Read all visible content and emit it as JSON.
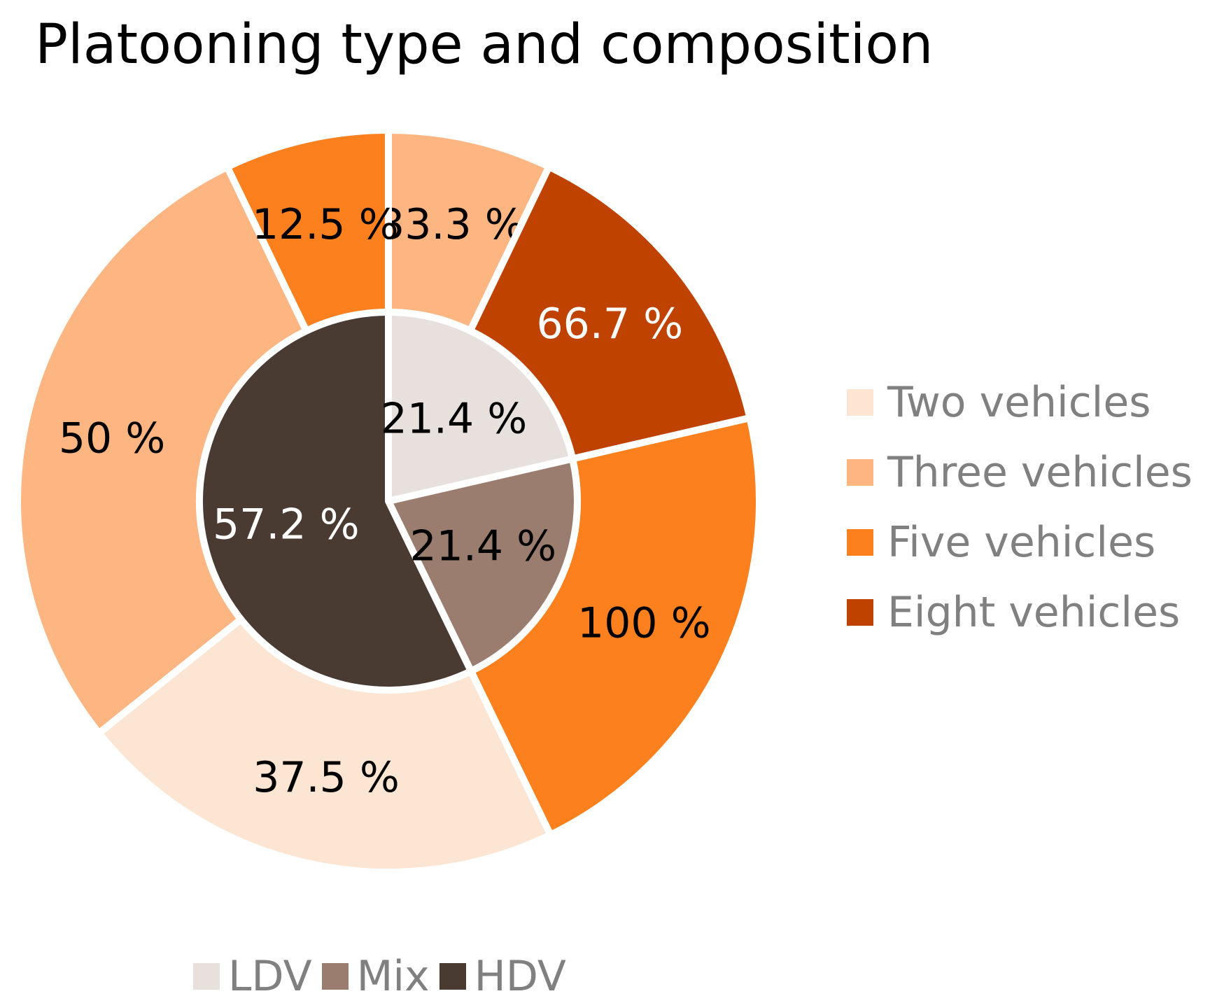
{
  "chart_data": {
    "type": "donut",
    "title": "Platooning type and composition",
    "inner_ring": {
      "categories": [
        "LDV",
        "Mix",
        "HDV"
      ],
      "values": [
        21.4,
        21.4,
        57.2
      ],
      "labels": [
        "21.4 %",
        "21.4 %",
        "57.2 %"
      ],
      "colors": [
        "#E7E0DD",
        "#9A7D6E",
        "#4A3B32"
      ]
    },
    "outer_ring": {
      "groups": [
        {
          "parent": "LDV",
          "values": [
            33.3,
            66.7
          ],
          "labels": [
            "33.3 %",
            "66.7 %"
          ],
          "series": [
            "Three vehicles",
            "Eight vehicles"
          ]
        },
        {
          "parent": "HDV",
          "values": [
            37.5,
            50,
            12.5
          ],
          "labels": [
            "37.5 %",
            "50 %",
            "12.5 %"
          ],
          "series": [
            "Two vehicles",
            "Three vehicles",
            "Five vehicles"
          ]
        },
        {
          "parent": "Mix",
          "values": [
            100
          ],
          "labels": [
            "100 %"
          ],
          "series": [
            "Five vehicles"
          ]
        }
      ]
    },
    "legend_series": [
      {
        "name": "Two vehicles",
        "color": "#FDE5D3"
      },
      {
        "name": "Three vehicles",
        "color": "#FDB582"
      },
      {
        "name": "Five vehicles",
        "color": "#FC811E"
      },
      {
        "name": "Eight vehicles",
        "color": "#C04200"
      }
    ],
    "legend_categories": [
      {
        "name": "LDV",
        "color": "#E7E0DD"
      },
      {
        "name": "Mix",
        "color": "#9A7D6E"
      },
      {
        "name": "HDV",
        "color": "#4A3B32"
      }
    ],
    "label_colors": {
      "dark": "#000000",
      "light": "#ffffff"
    }
  }
}
